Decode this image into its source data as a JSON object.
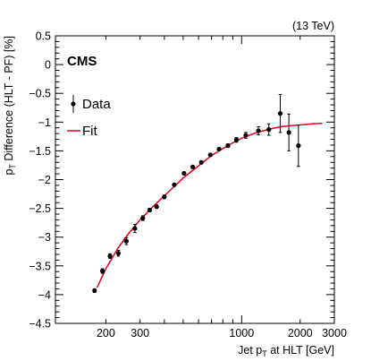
{
  "chart_data": {
    "type": "scatter",
    "energy_label": "(13 TeV)",
    "experiment_label": "CMS",
    "xlabel": {
      "main": "Jet p",
      "sub": "T",
      "rest": " at HLT [GeV]"
    },
    "ylabel": {
      "main": "p",
      "sub": "T",
      "rest": " Difference (HLT - PF) [%]"
    },
    "x_scale": "log",
    "xlim": [
      110,
      3000
    ],
    "ylim": [
      -4.5,
      0.5
    ],
    "x_ticks": [
      {
        "value": 200,
        "label": "200"
      },
      {
        "value": 300,
        "label": "300"
      },
      {
        "value": 1000,
        "label": "1000"
      },
      {
        "value": 2000,
        "label": "2000"
      },
      {
        "value": 3000,
        "label": "3000"
      }
    ],
    "y_ticks": [
      {
        "value": 0.5,
        "label": "0.5"
      },
      {
        "value": 0,
        "label": "0"
      },
      {
        "value": -0.5,
        "label": "−0.5"
      },
      {
        "value": -1,
        "label": "−1"
      },
      {
        "value": -1.5,
        "label": "−1.5"
      },
      {
        "value": -2,
        "label": "−2"
      },
      {
        "value": -2.5,
        "label": "−2.5"
      },
      {
        "value": -3,
        "label": "−3"
      },
      {
        "value": -3.5,
        "label": "−3.5"
      },
      {
        "value": -4,
        "label": "−4"
      },
      {
        "value": -4.5,
        "label": "−4.5"
      }
    ],
    "legend": {
      "placement": "top-left",
      "entries": [
        {
          "name": "Data",
          "kind": "marker"
        },
        {
          "name": "Fit",
          "kind": "line",
          "color": "#e8001c"
        }
      ]
    },
    "series": [
      {
        "name": "Data",
        "color": "#000000",
        "points": [
          {
            "x": 175,
            "y": -3.93,
            "err": 0.03
          },
          {
            "x": 192,
            "y": -3.59,
            "err": 0.04
          },
          {
            "x": 210,
            "y": -3.33,
            "err": 0.04
          },
          {
            "x": 232,
            "y": -3.28,
            "err": 0.05
          },
          {
            "x": 255,
            "y": -3.07,
            "err": 0.06
          },
          {
            "x": 282,
            "y": -2.85,
            "err": 0.07
          },
          {
            "x": 310,
            "y": -2.67,
            "err": 0.04
          },
          {
            "x": 336,
            "y": -2.53,
            "err": 0.03
          },
          {
            "x": 365,
            "y": -2.47,
            "err": 0.03
          },
          {
            "x": 400,
            "y": -2.3,
            "err": 0.03
          },
          {
            "x": 450,
            "y": -2.09,
            "err": 0.02
          },
          {
            "x": 505,
            "y": -1.89,
            "err": 0.02
          },
          {
            "x": 560,
            "y": -1.78,
            "err": 0.02
          },
          {
            "x": 620,
            "y": -1.7,
            "err": 0.02
          },
          {
            "x": 690,
            "y": -1.57,
            "err": 0.02
          },
          {
            "x": 765,
            "y": -1.47,
            "err": 0.02
          },
          {
            "x": 850,
            "y": -1.41,
            "err": 0.03
          },
          {
            "x": 940,
            "y": -1.31,
            "err": 0.04
          },
          {
            "x": 1050,
            "y": -1.23,
            "err": 0.05
          },
          {
            "x": 1220,
            "y": -1.15,
            "err": 0.07
          },
          {
            "x": 1380,
            "y": -1.13,
            "err": 0.1
          },
          {
            "x": 1580,
            "y": -0.85,
            "err": 0.33
          },
          {
            "x": 1750,
            "y": -1.18,
            "err": 0.32
          },
          {
            "x": 1960,
            "y": -1.41,
            "err": 0.36
          }
        ]
      },
      {
        "name": "Fit",
        "color": "#e8001c",
        "points": [
          {
            "x": 180,
            "y": -3.88
          },
          {
            "x": 200,
            "y": -3.55
          },
          {
            "x": 230,
            "y": -3.2
          },
          {
            "x": 260,
            "y": -2.95
          },
          {
            "x": 300,
            "y": -2.7
          },
          {
            "x": 350,
            "y": -2.47
          },
          {
            "x": 400,
            "y": -2.28
          },
          {
            "x": 450,
            "y": -2.12
          },
          {
            "x": 500,
            "y": -1.97
          },
          {
            "x": 600,
            "y": -1.76
          },
          {
            "x": 700,
            "y": -1.58
          },
          {
            "x": 800,
            "y": -1.46
          },
          {
            "x": 900,
            "y": -1.36
          },
          {
            "x": 1000,
            "y": -1.28
          },
          {
            "x": 1200,
            "y": -1.18
          },
          {
            "x": 1400,
            "y": -1.12
          },
          {
            "x": 1600,
            "y": -1.08
          },
          {
            "x": 1800,
            "y": -1.06
          },
          {
            "x": 2000,
            "y": -1.05
          },
          {
            "x": 2300,
            "y": -1.03
          },
          {
            "x": 2600,
            "y": -1.02
          }
        ]
      }
    ]
  }
}
